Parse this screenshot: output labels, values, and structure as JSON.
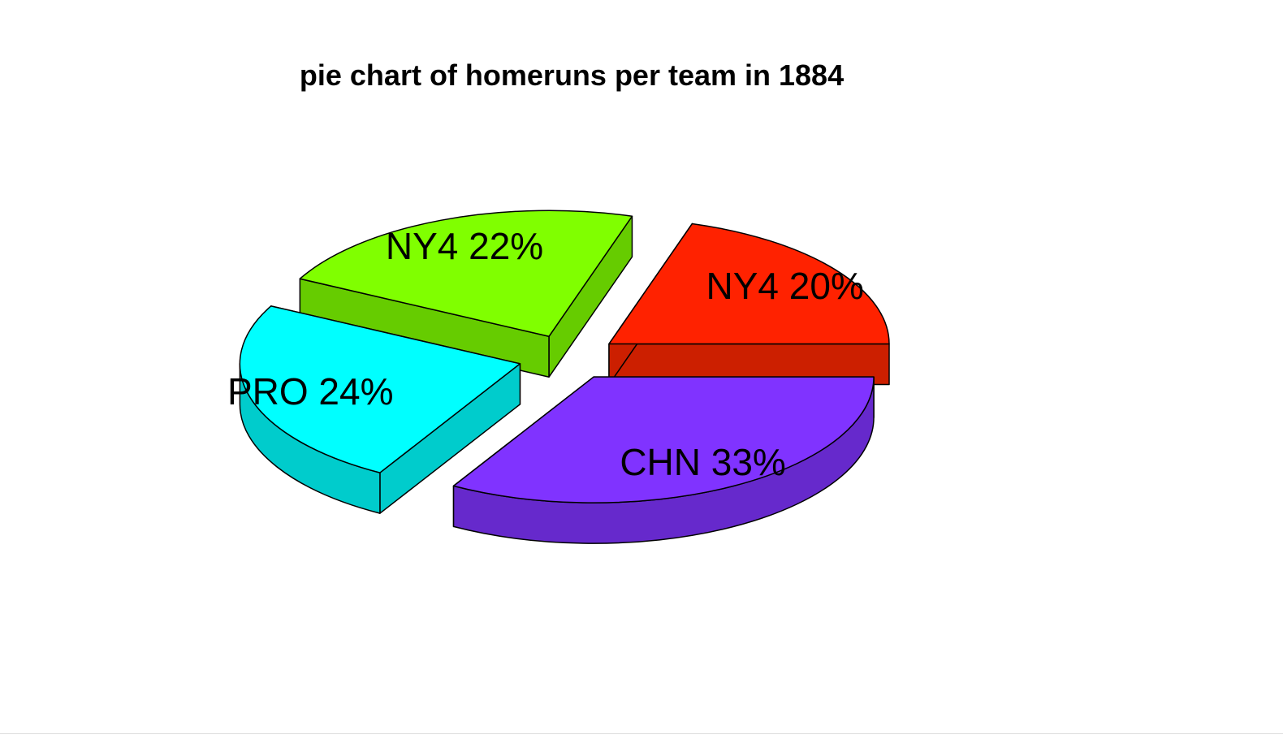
{
  "chart_data": {
    "type": "pie",
    "title": "pie chart of homeruns per team in 1884",
    "style": "3d-exploded",
    "slices": [
      {
        "label": "NY4 20%",
        "team": "NY4",
        "percent": 20,
        "top_color": "#ff2200",
        "side_color": "#cc1f00"
      },
      {
        "label": "NY4 22%",
        "team": "NY4",
        "percent": 22,
        "top_color": "#80ff00",
        "side_color": "#66cc00"
      },
      {
        "label": "PRO 24%",
        "team": "PRO",
        "percent": 24,
        "top_color": "#00ffff",
        "side_color": "#00cccc"
      },
      {
        "label": "CHN 33%",
        "team": "CHN",
        "percent": 33,
        "top_color": "#8033ff",
        "side_color": "#6629cc"
      }
    ]
  }
}
